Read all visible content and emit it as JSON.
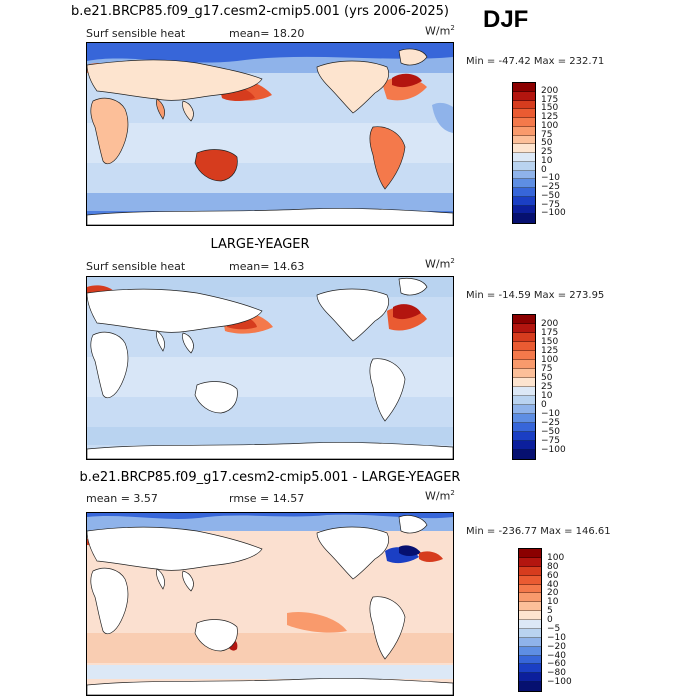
{
  "season": "DJF",
  "panels": [
    {
      "title": "b.e21.BRCP85.f09_g17.cesm2-cmip5.001 (yrs 2006-2025)",
      "left_label": "Surf sensible heat",
      "mid_label": "mean=  18.20",
      "units_base": "W/m",
      "units_exp": "2",
      "minmax": "Min = -47.42  Max = 232.71",
      "colorbar_labels": [
        "200",
        "175",
        "150",
        "125",
        "100",
        "75",
        "50",
        "25",
        "10",
        "0",
        "−10",
        "−25",
        "−50",
        "−75",
        "−100"
      ],
      "colorbar_colors": [
        "#8b0000",
        "#b3150f",
        "#d63c1e",
        "#ea5b32",
        "#f4794b",
        "#f99a6c",
        "#fcbf99",
        "#fde4cf",
        "#dce8f6",
        "#b9d3f0",
        "#8fb3ea",
        "#5e8ee3",
        "#3766d9",
        "#1b3fc4",
        "#0c1f9c",
        "#061070"
      ],
      "base": "#c8dcf4"
    },
    {
      "title": "LARGE-YEAGER",
      "left_label": "Surf sensible heat",
      "mid_label": "mean=  14.63",
      "units_base": "W/m",
      "units_exp": "2",
      "minmax": "Min = -14.59  Max = 273.95",
      "colorbar_labels": [
        "200",
        "175",
        "150",
        "125",
        "100",
        "75",
        "50",
        "25",
        "10",
        "0",
        "−10",
        "−25",
        "−50",
        "−75",
        "−100"
      ],
      "colorbar_colors": [
        "#8b0000",
        "#b3150f",
        "#d63c1e",
        "#ea5b32",
        "#f4794b",
        "#f99a6c",
        "#fcbf99",
        "#fde4cf",
        "#dce8f6",
        "#b9d3f0",
        "#8fb3ea",
        "#5e8ee3",
        "#3766d9",
        "#1b3fc4",
        "#0c1f9c",
        "#061070"
      ],
      "base": "#c8dcf4"
    },
    {
      "title": "b.e21.BRCP85.f09_g17.cesm2-cmip5.001 - LARGE-YEAGER",
      "left_label": "mean =   3.57",
      "mid_label": "rmse =   14.57",
      "units_base": "W/m",
      "units_exp": "2",
      "minmax": "Min = -236.77  Max = 146.61",
      "colorbar_labels": [
        "100",
        "80",
        "60",
        "40",
        "20",
        "10",
        "5",
        "0",
        "−5",
        "−10",
        "−20",
        "−40",
        "−60",
        "−80",
        "−100"
      ],
      "colorbar_colors": [
        "#8b0000",
        "#b3150f",
        "#d63c1e",
        "#ea5b32",
        "#f4794b",
        "#f99a6c",
        "#fcbf99",
        "#fde4cf",
        "#dce8f6",
        "#b9d3f0",
        "#8fb3ea",
        "#5e8ee3",
        "#3766d9",
        "#1b3fc4",
        "#0c1f9c",
        "#061070"
      ],
      "base": "#fbe0d0"
    }
  ]
}
